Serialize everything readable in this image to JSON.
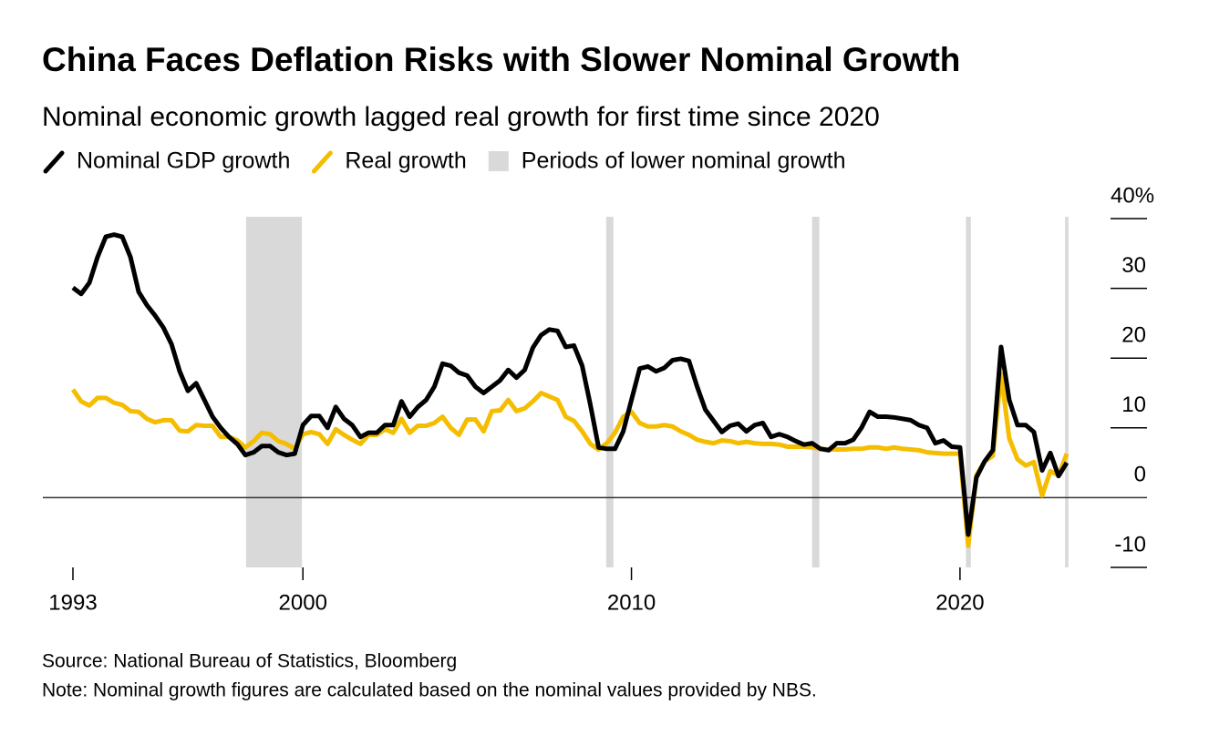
{
  "chart_data": {
    "type": "line",
    "title": "China Faces Deflation Risks with Slower Nominal Growth",
    "subtitle": "Nominal economic growth lagged real growth for first time since 2020",
    "source": "Source: National Bureau of Statistics, Bloomberg",
    "note": "Note: Nominal growth figures are calculated based on the nominal values provided by NBS.",
    "x": [
      1993,
      1993.25,
      1993.5,
      1993.75,
      1994,
      1994.25,
      1994.5,
      1994.75,
      1995,
      1995.25,
      1995.5,
      1995.75,
      1996,
      1996.25,
      1996.5,
      1996.75,
      1997,
      1997.25,
      1997.5,
      1997.75,
      1998,
      1998.25,
      1998.5,
      1998.75,
      1999,
      1999.25,
      1999.5,
      1999.75,
      2000,
      2000.25,
      2000.5,
      2000.75,
      2001,
      2001.25,
      2001.5,
      2001.75,
      2002,
      2002.25,
      2002.5,
      2002.75,
      2003,
      2003.25,
      2003.5,
      2003.75,
      2004,
      2004.25,
      2004.5,
      2004.75,
      2005,
      2005.25,
      2005.5,
      2005.75,
      2006,
      2006.25,
      2006.5,
      2006.75,
      2007,
      2007.25,
      2007.5,
      2007.75,
      2008,
      2008.25,
      2008.5,
      2008.75,
      2009,
      2009.25,
      2009.5,
      2009.75,
      2010,
      2010.25,
      2010.5,
      2010.75,
      2011,
      2011.25,
      2011.5,
      2011.75,
      2012,
      2012.25,
      2012.5,
      2012.75,
      2013,
      2013.25,
      2013.5,
      2013.75,
      2014,
      2014.25,
      2014.5,
      2014.75,
      2015,
      2015.25,
      2015.5,
      2015.75,
      2016,
      2016.25,
      2016.5,
      2016.75,
      2017,
      2017.25,
      2017.5,
      2017.75,
      2018,
      2018.25,
      2018.5,
      2018.75,
      2019,
      2019.25,
      2019.5,
      2019.75,
      2020,
      2020.25,
      2020.5,
      2020.75,
      2021,
      2021.25,
      2021.5,
      2021.75,
      2022,
      2022.25,
      2022.5,
      2022.75,
      2023,
      2023.25
    ],
    "series": [
      {
        "name": "Nominal GDP growth",
        "color": "#000000",
        "values": [
          30.1,
          29.2,
          30.8,
          34.5,
          37.4,
          37.7,
          37.4,
          34.5,
          29.5,
          27.6,
          26.1,
          24.4,
          22,
          18.1,
          15.3,
          16.4,
          14,
          11.6,
          10,
          8.7,
          7.7,
          6.1,
          6.5,
          7.4,
          7.4,
          6.5,
          6.1,
          6.3,
          10.4,
          11.7,
          11.7,
          10,
          13,
          11.3,
          10.4,
          8.7,
          9.3,
          9.3,
          10.4,
          10.4,
          13.8,
          11.6,
          13,
          14,
          15.9,
          19.2,
          18.9,
          17.9,
          17.5,
          15.9,
          15,
          15.9,
          16.8,
          18.3,
          17.2,
          18.3,
          21.5,
          23.3,
          24.1,
          23.9,
          21.6,
          21.8,
          18.9,
          13.3,
          7.2,
          7,
          7,
          9.5,
          14,
          18.5,
          18.8,
          18.1,
          18.6,
          19.7,
          19.9,
          19.6,
          15.9,
          12.6,
          11,
          9.4,
          10.3,
          10.6,
          9.5,
          10.4,
          10.7,
          8.7,
          9.1,
          8.7,
          8.1,
          7.6,
          7.8,
          7,
          6.8,
          7.8,
          7.8,
          8.3,
          10,
          12.3,
          11.6,
          11.6,
          11.5,
          11.3,
          11.1,
          10.4,
          10,
          7.8,
          8.2,
          7.3,
          7.2,
          -5.3,
          2.9,
          5.2,
          6.8,
          21.6,
          14,
          10.4,
          10.4,
          9.4,
          3.9,
          6.4,
          3.1,
          5.0
        ]
      },
      {
        "name": "Real growth",
        "color": "#f5bd00",
        "values": [
          15.5,
          13.8,
          13.2,
          14.3,
          14.3,
          13.6,
          13.3,
          12.4,
          12.3,
          11.3,
          10.8,
          11.1,
          11.1,
          9.6,
          9.5,
          10.4,
          10.3,
          10.3,
          8.7,
          8.7,
          8.2,
          7.2,
          8.1,
          9.3,
          9.1,
          8.1,
          7.7,
          7,
          9.1,
          9.4,
          9.1,
          7.7,
          9.8,
          9,
          8.3,
          7.7,
          9,
          9,
          9.8,
          9.3,
          11.3,
          9.3,
          10.3,
          10.3,
          10.7,
          11.6,
          10,
          9,
          11.2,
          11.2,
          9.5,
          12.4,
          12.5,
          14,
          12.4,
          12.8,
          13.8,
          15,
          14.5,
          14,
          11.6,
          11,
          9.5,
          7.7,
          6.9,
          7.8,
          9.3,
          11.6,
          12.3,
          10.7,
          10.2,
          10.2,
          10.4,
          10.2,
          9.5,
          9,
          8.3,
          8,
          7.8,
          8.2,
          8.1,
          7.8,
          8,
          7.8,
          7.7,
          7.7,
          7.6,
          7.3,
          7.3,
          7.3,
          7.2,
          7,
          6.9,
          6.9,
          6.9,
          7,
          7,
          7.2,
          7.2,
          7,
          7.2,
          7,
          6.9,
          6.8,
          6.5,
          6.4,
          6.3,
          6.3,
          6.3,
          -6.9,
          3.2,
          5.2,
          6,
          17.7,
          8.5,
          5.5,
          4.6,
          5.1,
          0.3,
          3.8,
          3.2,
          6.3
        ]
      }
    ],
    "periods": {
      "name": "Periods of lower nominal growth",
      "color": "#d9d9d9",
      "ranges": [
        [
          1998.27,
          1999.97
        ],
        [
          2009.23,
          2009.45
        ],
        [
          2015.5,
          2015.72
        ],
        [
          2020.18,
          2020.33
        ],
        [
          2023.2,
          2023.3
        ]
      ]
    },
    "xlim": [
      1993,
      2023.25
    ],
    "xticks": [
      1993,
      2000,
      2010,
      2020
    ],
    "ylim": [
      -10,
      40
    ],
    "yticks": [
      -10,
      0,
      10,
      20,
      30,
      {
        "value": 40,
        "label": "40%"
      }
    ]
  }
}
